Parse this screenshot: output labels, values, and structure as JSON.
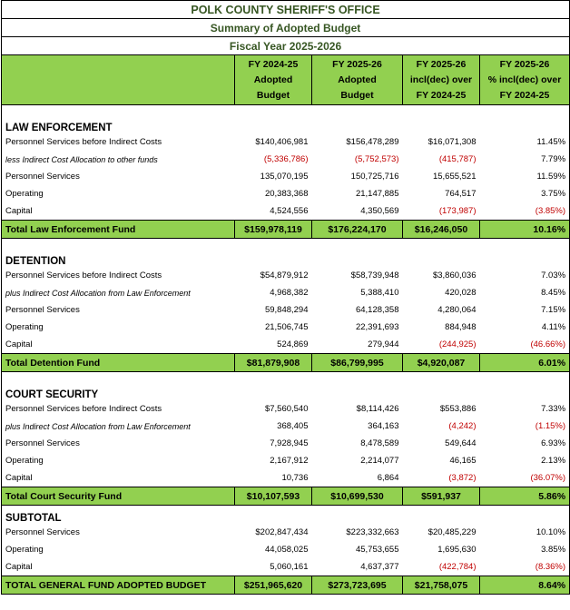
{
  "header": {
    "title": "POLK COUNTY SHERIFF'S OFFICE",
    "subtitle": "Summary of  Adopted Budget",
    "fiscal_year": "Fiscal Year 2025-2026"
  },
  "column_headers": [
    [
      "FY 2024-25",
      "Adopted",
      "Budget"
    ],
    [
      "FY 2025-26",
      "Adopted",
      "Budget"
    ],
    [
      "FY 2025-26",
      "incl(dec) over",
      "FY 2024-25"
    ],
    [
      "FY 2025-26",
      "% incl(dec) over",
      "FY 2024-25"
    ]
  ],
  "sections": [
    {
      "title": "LAW ENFORCEMENT",
      "rows": [
        [
          "Personnel Services before Indirect Costs",
          "$140,406,981",
          "$156,478,289",
          "$16,071,308",
          "11.45%"
        ],
        [
          "less Indirect Cost Allocation to other funds",
          "(5,336,786)",
          "(5,752,573)",
          "(415,787)",
          "7.79%"
        ],
        [
          "Personnel Services",
          "135,070,195",
          "150,725,716",
          "15,655,521",
          "11.59%"
        ],
        [
          "Operating",
          "20,383,368",
          "21,147,885",
          "764,517",
          "3.75%"
        ],
        [
          "Capital",
          "4,524,556",
          "4,350,569",
          "(173,987)",
          "(3.85%)"
        ]
      ],
      "total": [
        "Total Law Enforcement Fund",
        "$159,978,119",
        "$176,224,170",
        "$16,246,050",
        "10.16%"
      ]
    },
    {
      "title": "DETENTION",
      "rows": [
        [
          "Personnel Services before Indirect Costs",
          "$54,879,912",
          "$58,739,948",
          "$3,860,036",
          "7.03%"
        ],
        [
          "plus Indirect Cost Allocation from Law Enforcement",
          "4,968,382",
          "5,388,410",
          "420,028",
          "8.45%"
        ],
        [
          "Personnel Services",
          "59,848,294",
          "64,128,358",
          "4,280,064",
          "7.15%"
        ],
        [
          "Operating",
          "21,506,745",
          "22,391,693",
          "884,948",
          "4.11%"
        ],
        [
          "Capital",
          "524,869",
          "279,944",
          "(244,925)",
          "(46.66%)"
        ]
      ],
      "total": [
        "Total Detention Fund",
        "$81,879,908",
        "$86,799,995",
        "$4,920,087",
        "6.01%"
      ]
    },
    {
      "title": "COURT SECURITY",
      "rows": [
        [
          "Personnel Services before Indirect Costs",
          "$7,560,540",
          "$8,114,426",
          "$553,886",
          "7.33%"
        ],
        [
          "plus Indirect Cost Allocation from Law Enforcement",
          "368,405",
          "364,163",
          "(4,242)",
          "(1.15%)"
        ],
        [
          "Personnel Services",
          "7,928,945",
          "8,478,589",
          "549,644",
          "6.93%"
        ],
        [
          "Operating",
          "2,167,912",
          "2,214,077",
          "46,165",
          "2.13%"
        ],
        [
          "Capital",
          "10,736",
          "6,864",
          "(3,872)",
          "(36.07%)"
        ]
      ],
      "total": [
        "Total Court Security Fund",
        "$10,107,593",
        "$10,699,530",
        "$591,937",
        "5.86%"
      ]
    },
    {
      "title": "SUBTOTAL",
      "rows": [
        [
          "Personnel Services",
          "$202,847,434",
          "$223,332,663",
          "$20,485,229",
          "10.10%"
        ],
        [
          "Operating",
          "44,058,025",
          "45,753,655",
          "1,695,630",
          "3.85%"
        ],
        [
          "Capital",
          "5,060,161",
          "4,637,377",
          "(422,784)",
          "(8.36%)"
        ]
      ],
      "total": [
        "TOTAL GENERAL FUND ADOPTED BUDGET",
        "$251,965,620",
        "$273,723,695",
        "$21,758,075",
        "8.64%"
      ]
    }
  ]
}
